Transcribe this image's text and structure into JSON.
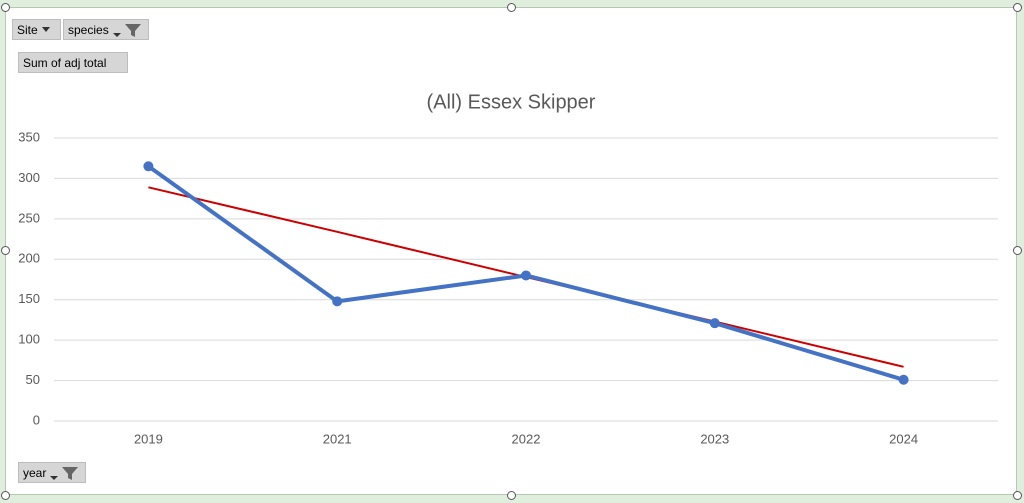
{
  "pivot_fields": {
    "filters": [
      "Site",
      "species"
    ],
    "values": "Sum of adj total",
    "axis": "year"
  },
  "chart_data": {
    "type": "line",
    "title": "(All) Essex Skipper",
    "categories": [
      "2019",
      "2021",
      "2022",
      "2023",
      "2024"
    ],
    "series": [
      {
        "color": "#4472c4",
        "values": [
          315,
          148,
          180,
          121,
          51
        ]
      }
    ],
    "trendline": {
      "color": "#cc0000",
      "values": [
        289,
        234,
        178,
        123,
        67
      ]
    },
    "ylim": [
      0,
      350
    ],
    "yticks": [
      0,
      50,
      100,
      150,
      200,
      250,
      300,
      350
    ],
    "grid": true
  }
}
